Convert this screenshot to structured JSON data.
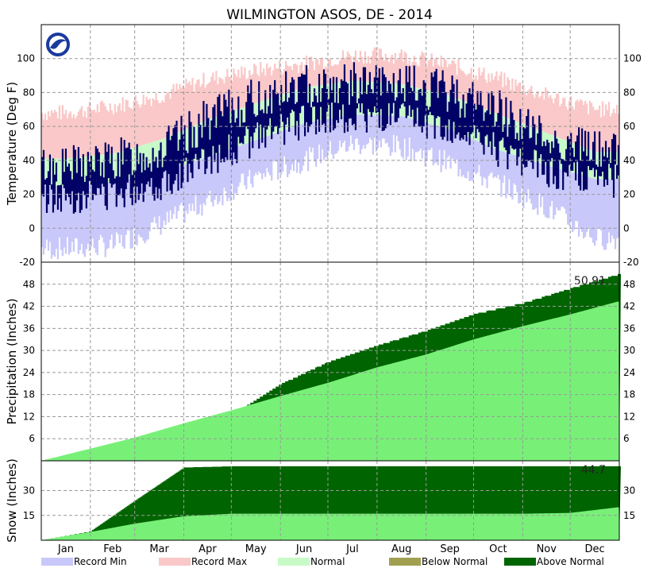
{
  "chart_data": {
    "type": "area",
    "title": "WILMINGTON   ASOS, DE - 2014",
    "months": [
      "Jan",
      "Feb",
      "Mar",
      "Apr",
      "May",
      "Jun",
      "Jul",
      "Aug",
      "Sep",
      "Oct",
      "Nov",
      "Dec"
    ],
    "colors": {
      "record_min": "#c8c8fa",
      "record_max": "#fac8c8",
      "normal": "#c8fac8",
      "observed": "#000066",
      "below_normal": "#a0a050",
      "above_normal": "#006400",
      "normal_precip": "#78f078"
    },
    "legend": [
      {
        "key": "record_min",
        "label": "Record Min"
      },
      {
        "key": "record_max",
        "label": "Record Max"
      },
      {
        "key": "normal",
        "label": "Normal"
      },
      {
        "key": "below_normal",
        "label": "Below Normal"
      },
      {
        "key": "above_normal",
        "label": "Above Normal"
      }
    ],
    "panels": [
      {
        "id": "temperature",
        "ylabel": "Temperature (Deg F)",
        "ylim": [
          -20,
          120
        ],
        "ticks": [
          100,
          80,
          60,
          40,
          20,
          0,
          -20
        ],
        "series": {
          "record_max_monthly": [
            68,
            72,
            78,
            88,
            93,
            97,
            102,
            102,
            96,
            88,
            78,
            70
          ],
          "record_min_monthly": [
            -12,
            -10,
            2,
            16,
            30,
            40,
            50,
            48,
            38,
            26,
            12,
            -6
          ],
          "normal_high_monthly": [
            41,
            44,
            52,
            64,
            74,
            83,
            87,
            85,
            78,
            67,
            56,
            45
          ],
          "normal_low_monthly": [
            25,
            27,
            33,
            42,
            52,
            62,
            67,
            66,
            58,
            46,
            37,
            29
          ],
          "observed_high_monthly": [
            36,
            40,
            45,
            64,
            76,
            84,
            85,
            84,
            80,
            70,
            52,
            46
          ],
          "observed_low_monthly": [
            18,
            21,
            26,
            40,
            53,
            63,
            66,
            64,
            58,
            46,
            33,
            28
          ]
        }
      },
      {
        "id": "precipitation",
        "ylabel": "Precipitation (Inches)",
        "ylim": [
          0,
          54
        ],
        "ticks": [
          48,
          42,
          36,
          30,
          24,
          18,
          12,
          6
        ],
        "annotation": "50.91",
        "series": {
          "observed_cumulative_monthly": [
            3.0,
            6.0,
            9.0,
            12.5,
            21.0,
            27.0,
            31.5,
            35.5,
            40.0,
            43.0,
            47.0,
            50.91
          ],
          "normal_cumulative_monthly": [
            3.3,
            6.3,
            10.2,
            13.7,
            17.6,
            21.2,
            25.4,
            28.9,
            33.0,
            36.6,
            39.8,
            43.4
          ]
        }
      },
      {
        "id": "snow",
        "ylabel": "Snow (Inches)",
        "ylim": [
          0,
          48
        ],
        "ticks": [
          30,
          15
        ],
        "annotation": "44.7",
        "series": {
          "observed_cumulative_monthly": [
            5.5,
            24.0,
            44.0,
            44.7,
            44.7,
            44.7,
            44.7,
            44.7,
            44.7,
            44.7,
            44.7,
            44.7
          ],
          "normal_cumulative_monthly": [
            5.0,
            10.0,
            14.5,
            16.0,
            16.0,
            16.0,
            16.0,
            16.0,
            16.0,
            16.0,
            16.5,
            20.0
          ]
        }
      }
    ]
  }
}
